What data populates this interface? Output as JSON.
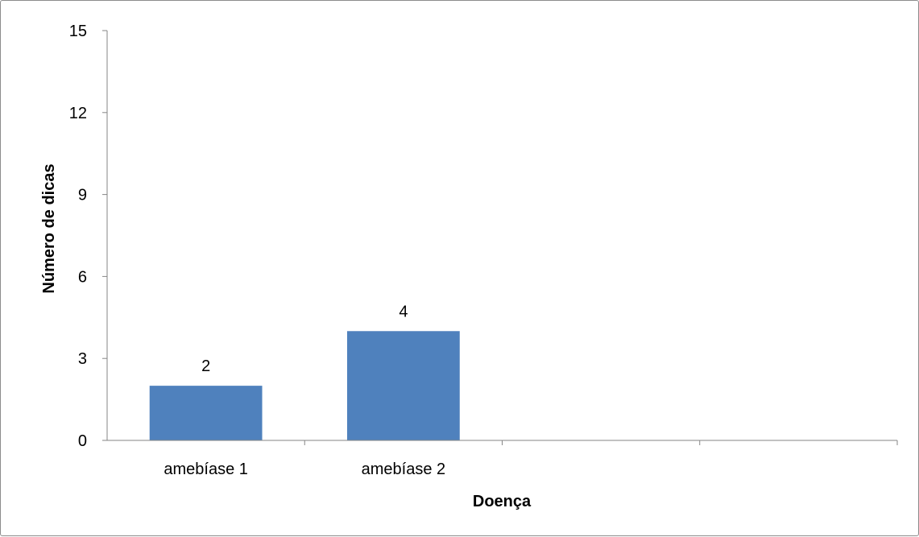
{
  "chart_data": {
    "type": "bar",
    "categories": [
      "amebíase 1",
      "amebíase 2",
      "",
      ""
    ],
    "values": [
      2,
      4,
      null,
      null
    ],
    "xlabel": "Doença",
    "ylabel": "Número de dicas",
    "ylim": [
      0,
      15
    ],
    "yticks": [
      0,
      3,
      6,
      9,
      12,
      15
    ],
    "data_labels": [
      "2",
      "4",
      "",
      ""
    ],
    "grid": false,
    "legend": "none",
    "colors": {
      "bar": "#4f81bd",
      "axis": "#868686",
      "frame": "#8c8c8c"
    }
  }
}
